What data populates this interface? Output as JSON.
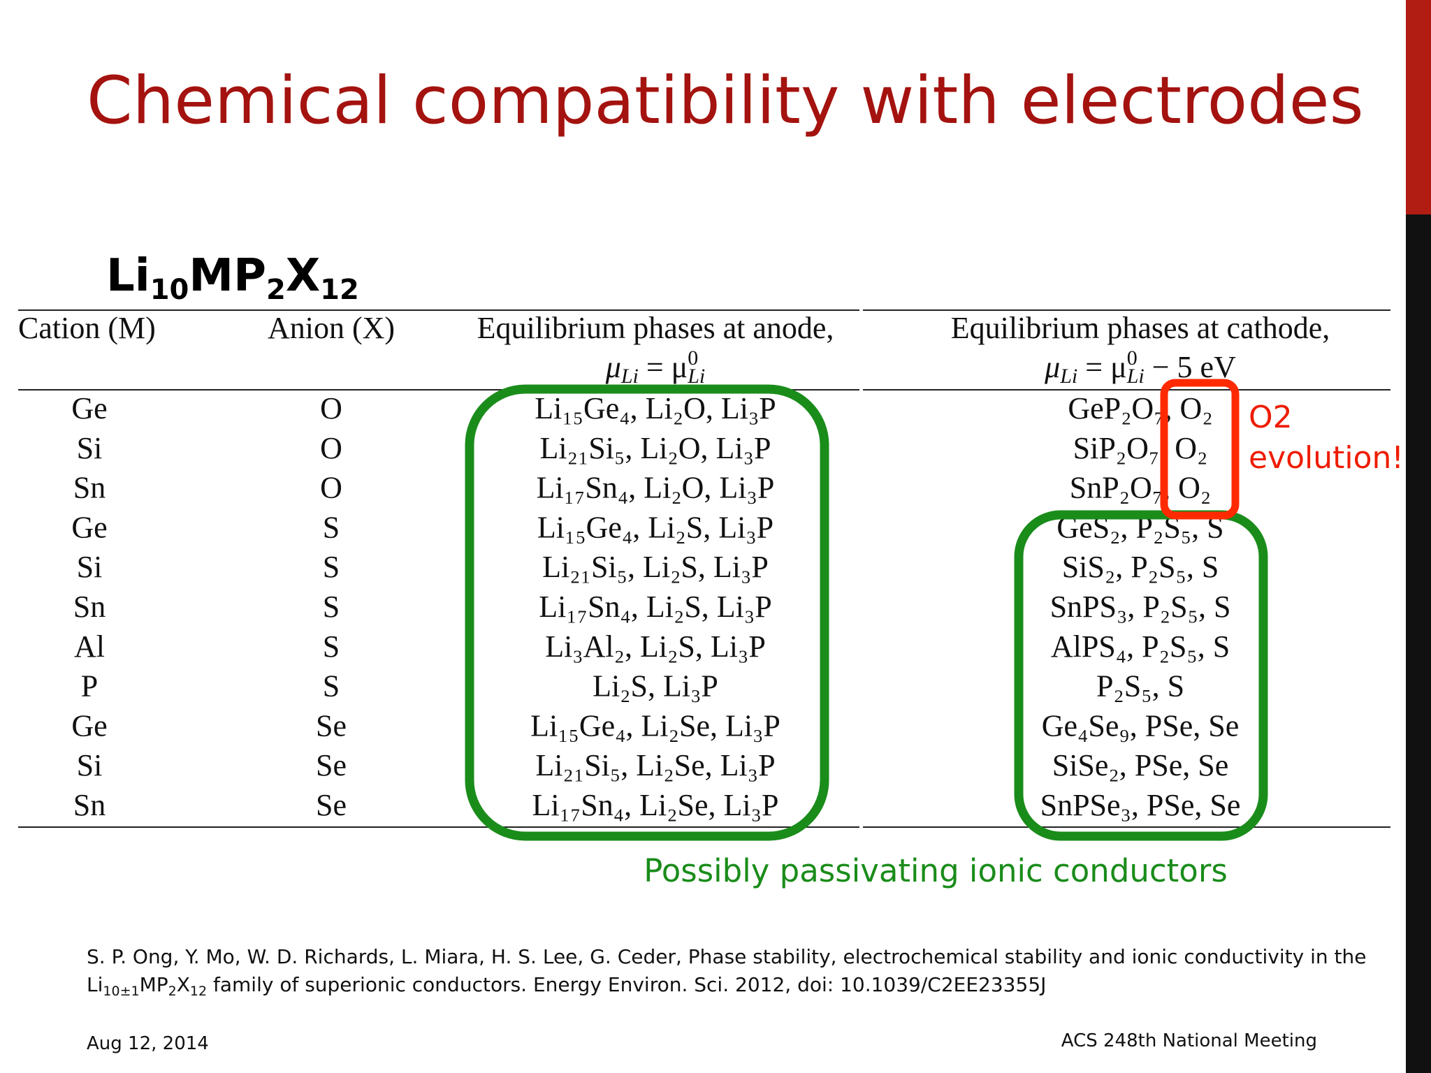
{
  "title": "Chemical compatibility with electrodes",
  "formula": {
    "li": "Li",
    "li_sub": "10",
    "mp": "MP",
    "mp_sub": "2",
    "x": "X",
    "x_sub": "12"
  },
  "table": {
    "headers": [
      "Cation (M)",
      "Anion (X)",
      "Equilibrium phases at anode,",
      "Equilibrium phases at cathode,"
    ],
    "anode_condition": {
      "mu": "μ",
      "mu_sub": "Li",
      "equals": " = μ",
      "mu0_sup": "0",
      "mu0_sub": "Li"
    },
    "cathode_condition": {
      "mu": "μ",
      "mu_sub": "Li",
      "equals": " = μ",
      "mu0_sup": "0",
      "mu0_sub": "Li",
      "rest": " − 5 eV"
    },
    "rows": [
      [
        "Ge",
        "O",
        "Li₁₅Ge₄, Li₂O, Li₃P",
        "GeP₂O₇, O₂"
      ],
      [
        "Si",
        "O",
        "Li₂₁Si₅, Li₂O, Li₃P",
        "SiP₂O₇, O₂"
      ],
      [
        "Sn",
        "O",
        "Li₁₇Sn₄, Li₂O, Li₃P",
        "SnP₂O₇, O₂"
      ],
      [
        "Ge",
        "S",
        "Li₁₅Ge₄, Li₂S, Li₃P",
        "GeS₂, P₂S₅, S"
      ],
      [
        "Si",
        "S",
        "Li₂₁Si₅, Li₂S, Li₃P",
        "SiS₂, P₂S₅, S"
      ],
      [
        "Sn",
        "S",
        "Li₁₇Sn₄, Li₂S, Li₃P",
        "SnPS₃, P₂S₅, S"
      ],
      [
        "Al",
        "S",
        "Li₃Al₂, Li₂S, Li₃P",
        "AlPS₄, P₂S₅, S"
      ],
      [
        "P",
        "S",
        "Li₂S, Li₃P",
        "P₂S₅, S"
      ],
      [
        "Ge",
        "Se",
        "Li₁₅Ge₄, Li₂Se, Li₃P",
        "Ge₄Se₉, PSe, Se"
      ],
      [
        "Si",
        "Se",
        "Li₂₁Si₅, Li₂Se, Li₃P",
        "SiSe₂, PSe, Se"
      ],
      [
        "Sn",
        "Se",
        "Li₁₇Sn₄, Li₂Se, Li₃P",
        "SnPSe₃, PSe, Se"
      ]
    ]
  },
  "annotations": {
    "o2": [
      "O2",
      "evolution!"
    ],
    "passivating": "Possibly passivating ionic conductors"
  },
  "citation": {
    "line1": "S. P. Ong, Y. Mo, W. D. Richards, L. Miara, H. S. Lee, G. Ceder, Phase stability, electrochemical stability and ionic conductivity in the",
    "line2": {
      "li": "Li",
      "li_sub": "10±1",
      "mp": "MP",
      "mp_sub": "2",
      "x": "X",
      "x_sub": "12",
      "rest": " family of superionic conductors. Energy Environ. Sci. 2012, doi: 10.1039/C2EE23355J"
    }
  },
  "footer": {
    "date": "Aug 12, 2014",
    "event": "ACS 248th National Meeting"
  }
}
